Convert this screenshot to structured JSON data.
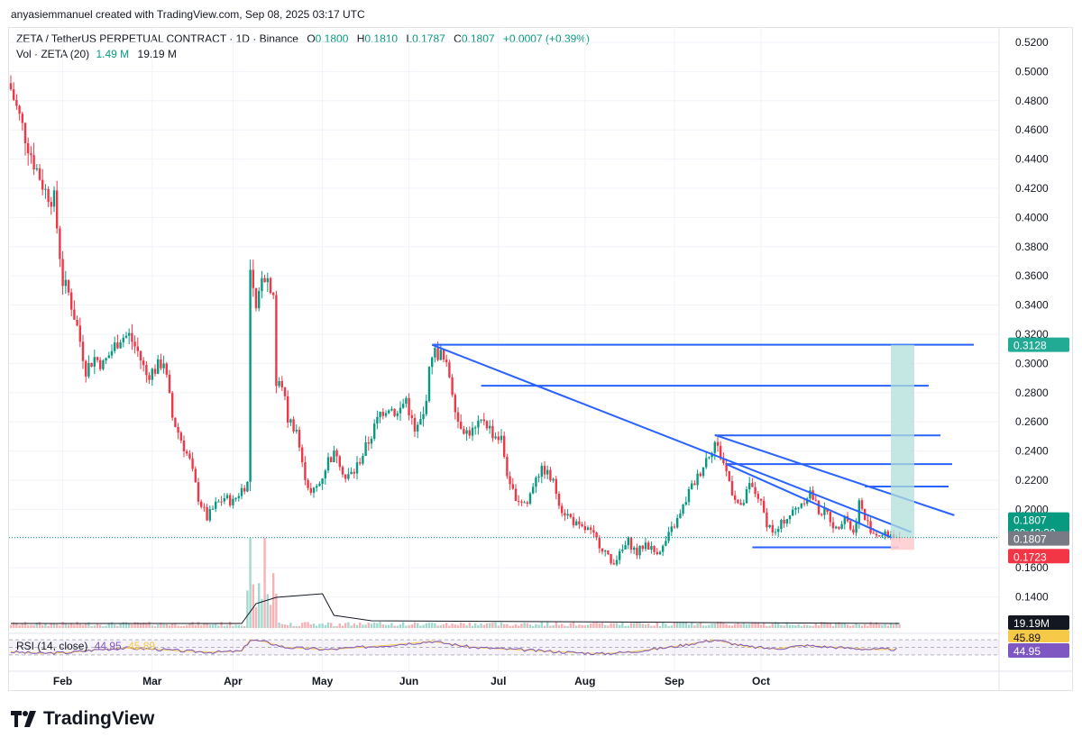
{
  "credit": "anyasiemmanuel created with TradingView.com, Sep 08, 2025 03:17 UTC",
  "legend": {
    "symbol": "ZETA / TetherUS PERPETUAL CONTRACT · 1D · Binance",
    "o_label": "O",
    "o": "0.1800",
    "h_label": "H",
    "h": "0.1810",
    "l_label": "L",
    "l": "0.1787",
    "c_label": "C",
    "c": "0.1807",
    "change": "+0.0007 (+0.39%)"
  },
  "volume_legend": {
    "label": "Vol · ZETA (20)",
    "vol": "1.49 M",
    "ma": "19.19 M"
  },
  "rsi_legend": {
    "label": "RSI (14, close)",
    "rsi": "44.95",
    "ma": "45.89"
  },
  "brand": "TradingView",
  "colors": {
    "up": "#089981",
    "down": "#f23645",
    "line": "#2962ff",
    "target": "#b2dfdb",
    "stop": "#ffcdd2",
    "rsi": "#7e57c2",
    "rsi_ma": "#f7c948"
  },
  "chart_data": {
    "type": "candlestick",
    "symbol": "ZETA / TetherUS PERPETUAL CONTRACT",
    "interval": "1D",
    "x_ticks": [
      "Feb",
      "Mar",
      "Apr",
      "May",
      "Jun",
      "Jul",
      "Aug",
      "Sep",
      "Oct"
    ],
    "y_ticks": [
      "0.5200",
      "0.5000",
      "0.4800",
      "0.4600",
      "0.4400",
      "0.4200",
      "0.4000",
      "0.3800",
      "0.3600",
      "0.3400",
      "0.3200",
      "0.3000",
      "0.2800",
      "0.2600",
      "0.2400",
      "0.2200",
      "0.2000",
      "0.1800",
      "0.1600",
      "0.1400"
    ],
    "ylim": [
      0.128,
      0.528
    ],
    "axis_badges": [
      {
        "text": "0.3128",
        "kind": "target"
      },
      {
        "text": "0.1807",
        "sub": "20:42:30",
        "kind": "last"
      },
      {
        "text": "0.1807",
        "kind": "neutral"
      },
      {
        "text": "0.1723",
        "kind": "stop"
      },
      {
        "text": "19.19M",
        "kind": "volume"
      },
      {
        "text": "45.89",
        "kind": "rsi_ma"
      },
      {
        "text": "44.95",
        "kind": "rsi"
      }
    ],
    "close_anchors": [
      [
        0,
        0.488
      ],
      [
        4,
        0.462
      ],
      [
        8,
        0.438
      ],
      [
        12,
        0.418
      ],
      [
        15,
        0.412
      ],
      [
        18,
        0.356
      ],
      [
        20,
        0.348
      ],
      [
        23,
        0.325
      ],
      [
        26,
        0.296
      ],
      [
        29,
        0.304
      ],
      [
        32,
        0.299
      ],
      [
        35,
        0.309
      ],
      [
        38,
        0.318
      ],
      [
        41,
        0.319
      ],
      [
        44,
        0.308
      ],
      [
        47,
        0.292
      ],
      [
        50,
        0.296
      ],
      [
        53,
        0.302
      ],
      [
        56,
        0.263
      ],
      [
        59,
        0.248
      ],
      [
        62,
        0.233
      ],
      [
        65,
        0.208
      ],
      [
        68,
        0.194
      ],
      [
        71,
        0.203
      ],
      [
        74,
        0.208
      ],
      [
        77,
        0.205
      ],
      [
        80,
        0.214
      ],
      [
        82,
        0.218
      ],
      [
        83,
        0.362
      ],
      [
        85,
        0.333
      ],
      [
        87,
        0.363
      ],
      [
        89,
        0.358
      ],
      [
        91,
        0.349
      ],
      [
        92,
        0.285
      ],
      [
        94,
        0.286
      ],
      [
        96,
        0.262
      ],
      [
        99,
        0.255
      ],
      [
        101,
        0.23
      ],
      [
        104,
        0.21
      ],
      [
        107,
        0.218
      ],
      [
        110,
        0.234
      ],
      [
        113,
        0.239
      ],
      [
        116,
        0.221
      ],
      [
        119,
        0.226
      ],
      [
        122,
        0.238
      ],
      [
        125,
        0.251
      ],
      [
        128,
        0.266
      ],
      [
        131,
        0.271
      ],
      [
        134,
        0.265
      ],
      [
        137,
        0.276
      ],
      [
        140,
        0.252
      ],
      [
        143,
        0.264
      ],
      [
        146,
        0.308
      ],
      [
        149,
        0.306
      ],
      [
        152,
        0.292
      ],
      [
        155,
        0.261
      ],
      [
        158,
        0.253
      ],
      [
        161,
        0.254
      ],
      [
        164,
        0.262
      ],
      [
        167,
        0.252
      ],
      [
        170,
        0.248
      ],
      [
        173,
        0.214
      ],
      [
        176,
        0.207
      ],
      [
        179,
        0.204
      ],
      [
        182,
        0.224
      ],
      [
        185,
        0.227
      ],
      [
        188,
        0.218
      ],
      [
        191,
        0.2
      ],
      [
        194,
        0.194
      ],
      [
        197,
        0.187
      ],
      [
        200,
        0.186
      ],
      [
        203,
        0.179
      ],
      [
        206,
        0.171
      ],
      [
        208,
        0.163
      ],
      [
        211,
        0.169
      ],
      [
        214,
        0.178
      ],
      [
        217,
        0.17
      ],
      [
        220,
        0.177
      ],
      [
        223,
        0.171
      ],
      [
        226,
        0.174
      ],
      [
        229,
        0.186
      ],
      [
        232,
        0.196
      ],
      [
        235,
        0.212
      ],
      [
        238,
        0.222
      ],
      [
        241,
        0.235
      ],
      [
        244,
        0.246
      ],
      [
        247,
        0.232
      ],
      [
        250,
        0.213
      ],
      [
        253,
        0.2
      ],
      [
        256,
        0.216
      ],
      [
        259,
        0.209
      ],
      [
        262,
        0.191
      ],
      [
        265,
        0.183
      ],
      [
        268,
        0.193
      ],
      [
        271,
        0.198
      ],
      [
        274,
        0.205
      ],
      [
        277,
        0.212
      ],
      [
        280,
        0.199
      ],
      [
        283,
        0.197
      ],
      [
        286,
        0.186
      ],
      [
        289,
        0.197
      ],
      [
        292,
        0.183
      ],
      [
        294,
        0.205
      ],
      [
        296,
        0.193
      ],
      [
        299,
        0.184
      ],
      [
        302,
        0.182
      ],
      [
        305,
        0.183
      ],
      [
        308,
        0.1807
      ]
    ],
    "rsi_anchors": [
      [
        0,
        38
      ],
      [
        10,
        34
      ],
      [
        20,
        36
      ],
      [
        30,
        44
      ],
      [
        40,
        48
      ],
      [
        50,
        45
      ],
      [
        60,
        40
      ],
      [
        70,
        37
      ],
      [
        80,
        40
      ],
      [
        83,
        70
      ],
      [
        88,
        65
      ],
      [
        95,
        50
      ],
      [
        110,
        44
      ],
      [
        130,
        55
      ],
      [
        146,
        66
      ],
      [
        160,
        50
      ],
      [
        175,
        44
      ],
      [
        190,
        38
      ],
      [
        205,
        33
      ],
      [
        215,
        38
      ],
      [
        230,
        52
      ],
      [
        244,
        70
      ],
      [
        255,
        52
      ],
      [
        265,
        46
      ],
      [
        275,
        55
      ],
      [
        290,
        48
      ],
      [
        300,
        44
      ],
      [
        308,
        44.95
      ]
    ],
    "volume_note": "daily volume bars; spike around the late-March breakout",
    "drawings": [
      {
        "type": "trendline",
        "from": [
          "May",
          0.3128
        ],
        "to": [
          "mid-Sep",
          0.1845
        ]
      },
      {
        "type": "trendline",
        "from": [
          "late-Jul",
          0.251
        ],
        "to": [
          "late-Sep",
          0.196
        ]
      },
      {
        "type": "trendline",
        "from": [
          "late-Jul",
          0.231
        ],
        "to": [
          "mid-Sep",
          0.18
        ]
      },
      {
        "type": "horizontal",
        "level": 0.3128
      },
      {
        "type": "horizontal",
        "level": 0.2847
      },
      {
        "type": "horizontal",
        "level": 0.2507
      },
      {
        "type": "horizontal",
        "level": 0.231
      },
      {
        "type": "horizontal",
        "level": 0.2157
      },
      {
        "type": "horizontal",
        "level": 0.174
      },
      {
        "type": "long_position",
        "target": 0.3128,
        "entry": 0.1807,
        "stop": 0.1723
      }
    ]
  }
}
